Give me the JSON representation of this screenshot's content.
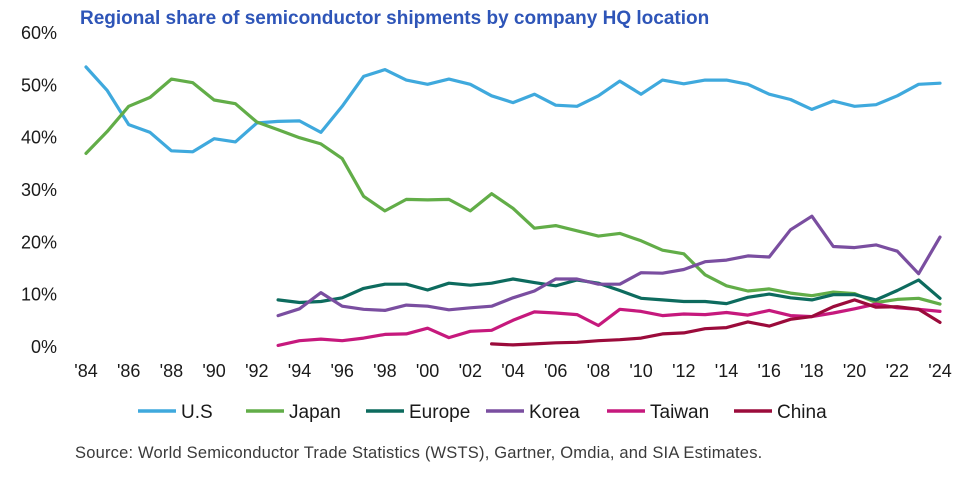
{
  "chart_data": {
    "type": "line",
    "title": "Regional share of semiconductor shipments by company HQ location",
    "source": "Source: World Semiconductor Trade Statistics (WSTS), Gartner, Omdia, and SIA Estimates.",
    "xlabel": "",
    "ylabel": "",
    "xlim": [
      1984,
      2024
    ],
    "ylim": [
      0,
      60
    ],
    "x_ticks": [
      1984,
      1986,
      1988,
      1990,
      1992,
      1994,
      1996,
      1998,
      2000,
      2002,
      2004,
      2006,
      2008,
      2010,
      2012,
      2014,
      2016,
      2018,
      2020,
      2022,
      2024
    ],
    "x_tick_labels": [
      "'84",
      "'86",
      "'88",
      "'90",
      "'92",
      "'94",
      "'96",
      "'98",
      "'00",
      "'02",
      "'04",
      "'06",
      "'08",
      "'10",
      "'12",
      "'14",
      "'16",
      "'18",
      "'20",
      "'22",
      "'24"
    ],
    "y_ticks": [
      0,
      10,
      20,
      30,
      40,
      50,
      60
    ],
    "y_tick_labels": [
      "0%",
      "10%",
      "20%",
      "30%",
      "40%",
      "50%",
      "60%"
    ],
    "grid": false,
    "legend_position": "bottom",
    "series": [
      {
        "name": "U.S",
        "color": "#3fa9dd",
        "x": [
          1984,
          1985,
          1986,
          1987,
          1988,
          1989,
          1990,
          1991,
          1992,
          1993,
          1994,
          1995,
          1996,
          1997,
          1998,
          1999,
          2000,
          2001,
          2002,
          2003,
          2004,
          2005,
          2006,
          2007,
          2008,
          2009,
          2010,
          2011,
          2012,
          2013,
          2014,
          2015,
          2016,
          2017,
          2018,
          2019,
          2020,
          2021,
          2022,
          2023,
          2024
        ],
        "y": [
          53.5,
          49,
          42.5,
          41,
          37.5,
          37.3,
          39.8,
          39.2,
          42.8,
          43.1,
          43.2,
          41,
          46,
          51.7,
          53,
          51,
          50.2,
          51.2,
          50.2,
          48,
          46.7,
          48.3,
          46.2,
          46,
          48,
          50.8,
          48.3,
          51,
          50.3,
          51,
          51,
          50.2,
          48.3,
          47.3,
          45.4,
          47,
          46,
          46.3,
          48,
          50.2,
          50.4
        ]
      },
      {
        "name": "Japan",
        "color": "#62ad48",
        "x": [
          1984,
          1985,
          1986,
          1987,
          1988,
          1989,
          1990,
          1991,
          1992,
          1993,
          1994,
          1995,
          1996,
          1997,
          1998,
          1999,
          2000,
          2001,
          2002,
          2003,
          2004,
          2005,
          2006,
          2007,
          2008,
          2009,
          2010,
          2011,
          2012,
          2013,
          2014,
          2015,
          2016,
          2017,
          2018,
          2019,
          2020,
          2021,
          2022,
          2023,
          2024
        ],
        "y": [
          37,
          41.2,
          46,
          47.7,
          51.2,
          50.5,
          47.2,
          46.5,
          43,
          41.5,
          40,
          38.8,
          36,
          28.8,
          26,
          28.2,
          28.1,
          28.2,
          26,
          29.3,
          26.5,
          22.7,
          23.2,
          22.2,
          21.2,
          21.7,
          20.3,
          18.5,
          17.8,
          13.8,
          11.7,
          10.7,
          11.1,
          10.3,
          9.8,
          10.5,
          10.2,
          8.5,
          9.1,
          9.3,
          8.2
        ]
      },
      {
        "name": "Europe",
        "color": "#0d6b5e",
        "x": [
          1993,
          1994,
          1995,
          1996,
          1997,
          1998,
          1999,
          2000,
          2001,
          2002,
          2003,
          2004,
          2005,
          2006,
          2007,
          2008,
          2009,
          2010,
          2011,
          2012,
          2013,
          2014,
          2015,
          2016,
          2017,
          2018,
          2019,
          2020,
          2021,
          2022,
          2023,
          2024
        ],
        "y": [
          9,
          8.5,
          8.7,
          9.4,
          11.2,
          12,
          12,
          10.9,
          12.2,
          11.8,
          12.2,
          13,
          12.3,
          11.7,
          12.8,
          12.2,
          10.8,
          9.3,
          9,
          8.7,
          8.7,
          8.3,
          9.5,
          10.1,
          9.4,
          9,
          10,
          10,
          9,
          10.8,
          12.8,
          9.3
        ]
      },
      {
        "name": "Korea",
        "color": "#7a4ea0",
        "x": [
          1993,
          1994,
          1995,
          1996,
          1997,
          1998,
          1999,
          2000,
          2001,
          2002,
          2003,
          2004,
          2005,
          2006,
          2007,
          2008,
          2009,
          2010,
          2011,
          2012,
          2013,
          2014,
          2015,
          2016,
          2017,
          2018,
          2019,
          2020,
          2021,
          2022,
          2023,
          2024
        ],
        "y": [
          6,
          7.3,
          10.4,
          7.8,
          7.2,
          7,
          8,
          7.8,
          7.1,
          7.5,
          7.8,
          9.4,
          10.7,
          13,
          13,
          12,
          12,
          14.2,
          14.1,
          14.8,
          16.3,
          16.6,
          17.4,
          17.2,
          22.4,
          25,
          19.2,
          19,
          19.5,
          18.3,
          14,
          21
        ]
      },
      {
        "name": "Taiwan",
        "color": "#c6197d",
        "x": [
          1993,
          1994,
          1995,
          1996,
          1997,
          1998,
          1999,
          2000,
          2001,
          2002,
          2003,
          2004,
          2005,
          2006,
          2007,
          2008,
          2009,
          2010,
          2011,
          2012,
          2013,
          2014,
          2015,
          2016,
          2017,
          2018,
          2019,
          2020,
          2021,
          2022,
          2023,
          2024
        ],
        "y": [
          0.3,
          1.2,
          1.5,
          1.2,
          1.7,
          2.4,
          2.5,
          3.6,
          1.8,
          3,
          3.2,
          5.1,
          6.7,
          6.5,
          6.2,
          4.1,
          7.2,
          6.8,
          6,
          6.3,
          6.2,
          6.6,
          6.1,
          7,
          6,
          5.8,
          6.5,
          7.3,
          8.2,
          7.5,
          7.2,
          6.8
        ]
      },
      {
        "name": "China",
        "color": "#9b0b3b",
        "x": [
          2003,
          2004,
          2005,
          2006,
          2007,
          2008,
          2009,
          2010,
          2011,
          2012,
          2013,
          2014,
          2015,
          2016,
          2017,
          2018,
          2019,
          2020,
          2021,
          2022,
          2023,
          2024
        ],
        "y": [
          0.6,
          0.4,
          0.6,
          0.8,
          0.9,
          1.2,
          1.4,
          1.7,
          2.5,
          2.7,
          3.5,
          3.7,
          4.8,
          4,
          5.3,
          5.8,
          7.7,
          9,
          7.6,
          7.7,
          7.2,
          4.7
        ]
      }
    ]
  }
}
